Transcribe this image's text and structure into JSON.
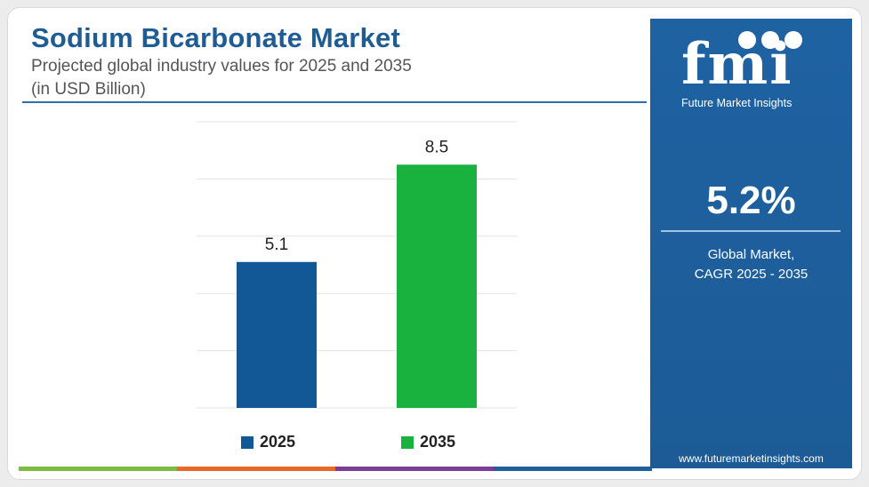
{
  "header": {
    "title": "Sodium Bicarbonate Market",
    "subtitle_line1": "Projected global industry values for 2025 and 2035",
    "subtitle_line2": "(in USD Billion)"
  },
  "chart_data": {
    "type": "bar",
    "categories": [
      "2025",
      "2035"
    ],
    "values": [
      5.1,
      8.5
    ],
    "value_labels": [
      "5.1",
      "8.5"
    ],
    "colors": [
      "#135896",
      "#19b23e"
    ],
    "ylim": [
      0,
      10
    ],
    "grid": true,
    "legend": "bottom",
    "title": "",
    "xlabel": "",
    "ylabel": ""
  },
  "legend": {
    "items": [
      {
        "label": "2025",
        "color": "#135896"
      },
      {
        "label": "2035",
        "color": "#19b23e"
      }
    ]
  },
  "sidebar": {
    "logo_text": "fmi",
    "logo_tagline": "Future Market Insights",
    "cagr_value": "5.2%",
    "cagr_label_line1": "Global Market,",
    "cagr_label_line2": "CAGR 2025 - 2035",
    "website": "www.futuremarketinsights.com",
    "background_color": "#1e5f9c"
  },
  "bottom_bar_colors": [
    "#7dbb42",
    "#e8682a",
    "#7a3e96",
    "#1e5f9c"
  ]
}
